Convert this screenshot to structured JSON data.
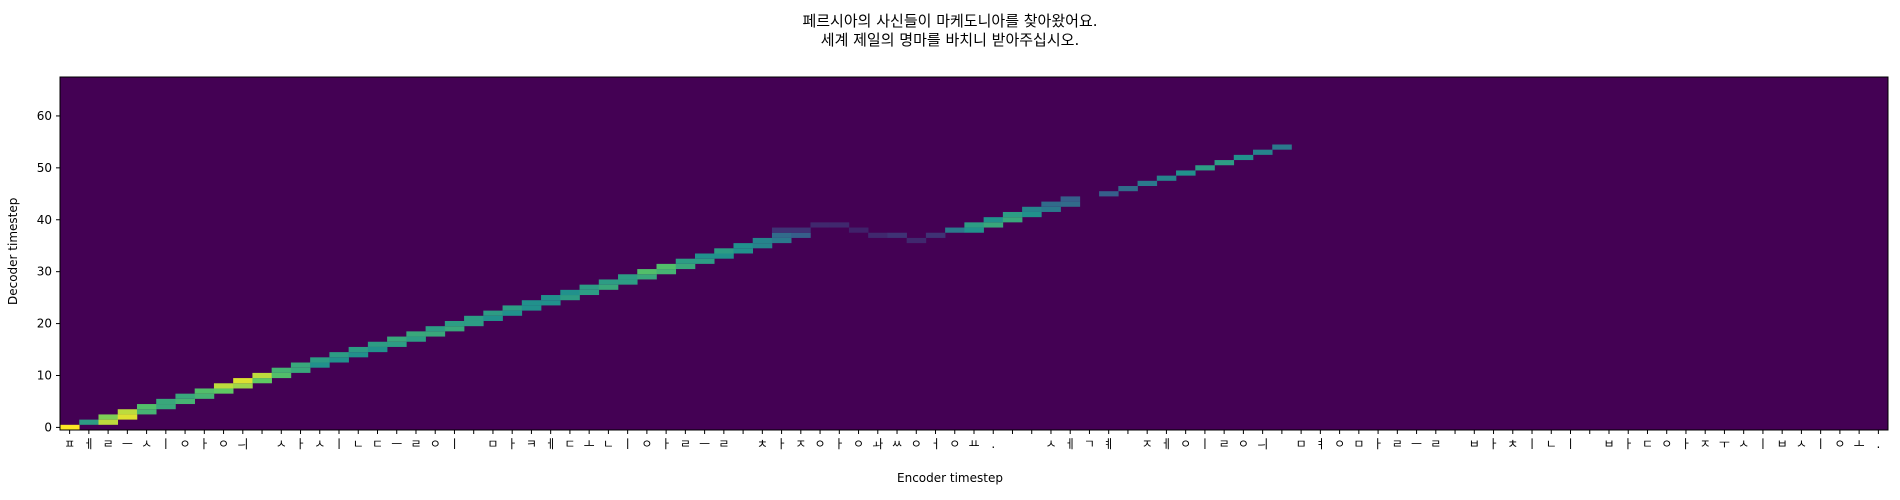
{
  "chart_data": {
    "type": "heatmap",
    "title": [
      "페르시아의 사신들이 마케도니아를 찾아왔어요.",
      "세계 제일의 명마를 바치니 받아주십시오."
    ],
    "xlabel": "Encoder timestep",
    "ylabel": "Decoder timestep",
    "ylim": [
      -0.5,
      67.5
    ],
    "y_ticks": [
      0,
      10,
      20,
      30,
      40,
      50,
      60
    ],
    "x_tick_labels": [
      "ㅍ",
      "ㅔ",
      "ㄹ",
      "ㅡ",
      "ㅅ",
      "ㅣ",
      "ㅇ",
      "ㅏ",
      "ㅇ",
      "ㅢ",
      " ",
      "ㅅ",
      "ㅏ",
      "ㅅ",
      "ㅣ",
      "ㄴ",
      "ㄷ",
      "ㅡ",
      "ㄹ",
      "ㅇ",
      "ㅣ",
      " ",
      "ㅁ",
      "ㅏ",
      "ㅋ",
      "ㅔ",
      "ㄷ",
      "ㅗ",
      "ㄴ",
      "ㅣ",
      "ㅇ",
      "ㅏ",
      "ㄹ",
      "ㅡ",
      "ㄹ",
      " ",
      "ㅊ",
      "ㅏ",
      "ㅈ",
      "ㅇ",
      "ㅏ",
      "ㅇ",
      "ㅘ",
      "ㅆ",
      "ㅇ",
      "ㅓ",
      "ㅇ",
      "ㅛ",
      ".",
      " ",
      " ",
      "ㅅ",
      "ㅔ",
      "ㄱ",
      "ㅖ",
      " ",
      "ㅈ",
      "ㅔ",
      "ㅇ",
      "ㅣ",
      "ㄹ",
      "ㅇ",
      "ㅢ",
      " ",
      "ㅁ",
      "ㅕ",
      "ㅇ",
      "ㅁ",
      "ㅏ",
      "ㄹ",
      "ㅡ",
      "ㄹ",
      " ",
      "ㅂ",
      "ㅏ",
      "ㅊ",
      "ㅣ",
      "ㄴ",
      "ㅣ",
      " ",
      "ㅂ",
      "ㅏ",
      "ㄷ",
      "ㅇ",
      "ㅏ",
      "ㅈ",
      "ㅜ",
      "ㅅ",
      "ㅣ",
      "ㅂ",
      "ㅅ",
      "ㅣ",
      "ㅇ",
      "ㅗ",
      "."
    ],
    "colormap": "viridis",
    "alignment_series": [
      {
        "name": "main_alignment",
        "points": [
          [
            0,
            0,
            1.0
          ],
          [
            1,
            1,
            0.55
          ],
          [
            2,
            1,
            0.9
          ],
          [
            2,
            2,
            0.8
          ],
          [
            3,
            2,
            0.95
          ],
          [
            3,
            3,
            0.9
          ],
          [
            4,
            3,
            0.65
          ],
          [
            4,
            4,
            0.7
          ],
          [
            5,
            4,
            0.6
          ],
          [
            5,
            5,
            0.6
          ],
          [
            6,
            5,
            0.65
          ],
          [
            6,
            6,
            0.6
          ],
          [
            7,
            6,
            0.65
          ],
          [
            7,
            7,
            0.7
          ],
          [
            8,
            7,
            0.75
          ],
          [
            8,
            8,
            0.9
          ],
          [
            9,
            8,
            0.85
          ],
          [
            9,
            9,
            0.95
          ],
          [
            10,
            9,
            0.75
          ],
          [
            10,
            10,
            0.9
          ],
          [
            11,
            10,
            0.7
          ],
          [
            11,
            11,
            0.65
          ],
          [
            12,
            11,
            0.6
          ],
          [
            12,
            12,
            0.6
          ],
          [
            13,
            12,
            0.5
          ],
          [
            13,
            13,
            0.55
          ],
          [
            14,
            13,
            0.5
          ],
          [
            14,
            14,
            0.55
          ],
          [
            15,
            14,
            0.5
          ],
          [
            15,
            15,
            0.55
          ],
          [
            16,
            15,
            0.5
          ],
          [
            16,
            16,
            0.55
          ],
          [
            17,
            16,
            0.55
          ],
          [
            17,
            17,
            0.6
          ],
          [
            18,
            17,
            0.55
          ],
          [
            18,
            18,
            0.6
          ],
          [
            19,
            18,
            0.6
          ],
          [
            19,
            19,
            0.55
          ],
          [
            20,
            19,
            0.6
          ],
          [
            20,
            20,
            0.55
          ],
          [
            21,
            20,
            0.55
          ],
          [
            21,
            21,
            0.55
          ],
          [
            22,
            21,
            0.5
          ],
          [
            22,
            22,
            0.55
          ],
          [
            23,
            22,
            0.5
          ],
          [
            23,
            23,
            0.55
          ],
          [
            24,
            23,
            0.5
          ],
          [
            24,
            24,
            0.5
          ],
          [
            25,
            24,
            0.5
          ],
          [
            25,
            25,
            0.5
          ],
          [
            26,
            25,
            0.55
          ],
          [
            26,
            26,
            0.5
          ],
          [
            27,
            26,
            0.55
          ],
          [
            27,
            27,
            0.55
          ],
          [
            28,
            27,
            0.6
          ],
          [
            28,
            28,
            0.55
          ],
          [
            29,
            28,
            0.55
          ],
          [
            29,
            29,
            0.55
          ],
          [
            30,
            29,
            0.6
          ],
          [
            30,
            30,
            0.7
          ],
          [
            31,
            30,
            0.65
          ],
          [
            31,
            31,
            0.7
          ],
          [
            32,
            31,
            0.6
          ],
          [
            32,
            32,
            0.55
          ],
          [
            33,
            32,
            0.55
          ],
          [
            33,
            33,
            0.5
          ],
          [
            34,
            33,
            0.5
          ],
          [
            34,
            34,
            0.55
          ],
          [
            35,
            34,
            0.5
          ],
          [
            35,
            35,
            0.5
          ],
          [
            36,
            35,
            0.45
          ],
          [
            36,
            36,
            0.45
          ],
          [
            37,
            36,
            0.4
          ],
          [
            37,
            37,
            0.35
          ],
          [
            38,
            37,
            0.3
          ]
        ]
      },
      {
        "name": "second_sentence_alignment",
        "points": [
          [
            46,
            38,
            0.4
          ],
          [
            47,
            38,
            0.5
          ],
          [
            47,
            39,
            0.55
          ],
          [
            48,
            39,
            0.6
          ],
          [
            48,
            40,
            0.5
          ],
          [
            49,
            40,
            0.6
          ],
          [
            49,
            41,
            0.55
          ],
          [
            50,
            41,
            0.5
          ],
          [
            50,
            42,
            0.45
          ],
          [
            51,
            42,
            0.4
          ],
          [
            51,
            43,
            0.35
          ],
          [
            52,
            43,
            0.35
          ],
          [
            52,
            44,
            0.3
          ]
        ]
      },
      {
        "name": "upper_spread",
        "points": [
          [
            54,
            45,
            0.3
          ],
          [
            55,
            46,
            0.35
          ],
          [
            56,
            47,
            0.4
          ],
          [
            57,
            48,
            0.45
          ],
          [
            58,
            49,
            0.5
          ],
          [
            59,
            50,
            0.55
          ],
          [
            60,
            51,
            0.55
          ],
          [
            61,
            52,
            0.5
          ],
          [
            62,
            53,
            0.45
          ],
          [
            63,
            54,
            0.4
          ]
        ]
      },
      {
        "name": "weak_mid",
        "points": [
          [
            37,
            38,
            0.15
          ],
          [
            38,
            38,
            0.15
          ],
          [
            39,
            39,
            0.12
          ],
          [
            40,
            39,
            0.12
          ],
          [
            41,
            38,
            0.1
          ],
          [
            42,
            37,
            0.12
          ],
          [
            43,
            37,
            0.15
          ],
          [
            44,
            36,
            0.12
          ],
          [
            45,
            37,
            0.15
          ]
        ]
      }
    ]
  }
}
